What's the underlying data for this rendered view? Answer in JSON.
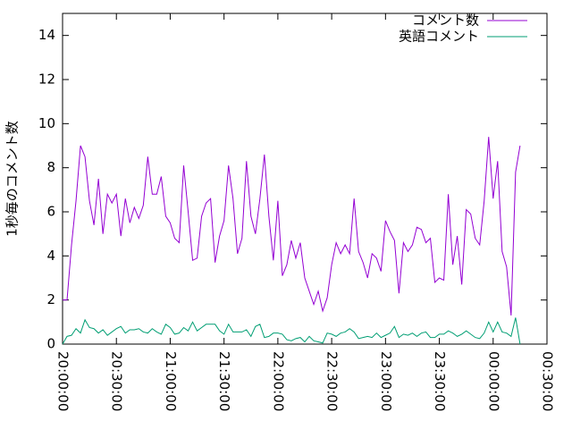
{
  "chart_data": {
    "type": "line",
    "ylabel": "1秒毎のコメント数",
    "x": [
      0,
      2.5,
      5,
      7.5,
      10,
      12.5,
      15,
      17.5,
      20,
      22.5,
      25,
      27.5,
      30,
      32.5,
      35,
      37.5,
      40,
      42.5,
      45,
      47.5,
      50,
      52.5,
      55,
      57.5,
      60,
      62.5,
      65,
      67.5,
      70,
      72.5,
      75,
      77.5,
      80,
      82.5,
      85,
      87.5,
      90,
      92.5,
      95,
      97.5,
      100,
      102.5,
      105,
      107.5,
      110,
      112.5,
      115,
      117.5,
      120,
      122.5,
      125,
      127.5,
      130,
      132.5,
      135,
      137.5,
      140,
      142.5,
      145,
      147.5,
      150,
      152.5,
      155,
      157.5,
      160,
      162.5,
      165,
      167.5,
      170,
      172.5,
      175,
      177.5,
      180,
      182.5,
      185,
      187.5,
      190,
      192.5,
      195,
      197.5,
      200,
      202.5,
      205,
      207.5,
      210,
      212.5,
      215,
      217.5,
      220,
      222.5,
      225,
      227.5,
      230,
      232.5,
      235,
      237.5,
      240,
      242.5,
      245,
      247.5,
      250,
      252.5,
      255
    ],
    "series": [
      {
        "name": "コメント数",
        "color": "#9400d3",
        "values": [
          2.0,
          2.0,
          4.5,
          6.5,
          9.0,
          8.5,
          6.5,
          5.4,
          7.5,
          5.0,
          6.8,
          6.4,
          6.8,
          4.9,
          6.6,
          5.5,
          6.2,
          5.7,
          6.3,
          8.5,
          6.8,
          6.8,
          7.6,
          5.8,
          5.5,
          4.8,
          4.6,
          8.1,
          6.0,
          3.8,
          3.9,
          5.8,
          6.4,
          6.6,
          3.7,
          4.9,
          5.6,
          8.1,
          6.6,
          4.1,
          4.8,
          8.3,
          5.8,
          5.0,
          6.6,
          8.6,
          5.8,
          3.8,
          6.5,
          3.1,
          3.6,
          4.7,
          3.9,
          4.6,
          3.0,
          2.4,
          1.8,
          2.4,
          1.5,
          2.1,
          3.6,
          4.6,
          4.1,
          4.5,
          4.1,
          6.6,
          4.2,
          3.7,
          3.0,
          4.1,
          3.9,
          3.3,
          5.6,
          5.1,
          4.7,
          2.3,
          4.6,
          4.2,
          4.5,
          5.3,
          5.2,
          4.6,
          4.8,
          2.8,
          3.0,
          2.9,
          6.8,
          3.6,
          4.9,
          2.7,
          6.1,
          5.9,
          4.8,
          4.5,
          6.5,
          9.4,
          6.6,
          8.3,
          4.2,
          3.5,
          1.3,
          7.8,
          9.0
        ]
      },
      {
        "name": "英語コメント",
        "color": "#009e73",
        "values": [
          0,
          0.35,
          0.4,
          0.7,
          0.5,
          1.1,
          0.75,
          0.7,
          0.5,
          0.65,
          0.4,
          0.55,
          0.7,
          0.8,
          0.5,
          0.65,
          0.65,
          0.7,
          0.55,
          0.5,
          0.7,
          0.55,
          0.45,
          0.9,
          0.75,
          0.45,
          0.5,
          0.75,
          0.6,
          1.0,
          0.6,
          0.75,
          0.9,
          0.9,
          0.9,
          0.6,
          0.45,
          0.9,
          0.55,
          0.55,
          0.55,
          0.65,
          0.35,
          0.8,
          0.9,
          0.3,
          0.35,
          0.5,
          0.5,
          0.45,
          0.2,
          0.15,
          0.25,
          0.3,
          0.1,
          0.35,
          0.15,
          0.1,
          0.05,
          0.5,
          0.45,
          0.35,
          0.5,
          0.55,
          0.7,
          0.55,
          0.25,
          0.3,
          0.35,
          0.3,
          0.5,
          0.3,
          0.4,
          0.5,
          0.8,
          0.3,
          0.45,
          0.4,
          0.5,
          0.35,
          0.5,
          0.55,
          0.3,
          0.3,
          0.45,
          0.45,
          0.6,
          0.5,
          0.35,
          0.45,
          0.6,
          0.45,
          0.3,
          0.25,
          0.5,
          1.0,
          0.55,
          1.0,
          0.55,
          0.5,
          0.35,
          1.2,
          0
        ]
      }
    ],
    "xlim": [
      0,
      270
    ],
    "xticks": [
      {
        "value": 0,
        "label": "20:00:00"
      },
      {
        "value": 30,
        "label": "20:30:00"
      },
      {
        "value": 60,
        "label": "21:00:00"
      },
      {
        "value": 90,
        "label": "21:30:00"
      },
      {
        "value": 120,
        "label": "22:00:00"
      },
      {
        "value": 150,
        "label": "22:30:00"
      },
      {
        "value": 180,
        "label": "23:00:00"
      },
      {
        "value": 210,
        "label": "23:30:00"
      },
      {
        "value": 240,
        "label": "00:00:00"
      },
      {
        "value": 270,
        "label": "00:30:00"
      }
    ],
    "ylim": [
      0,
      15
    ],
    "yticks": [
      0,
      2,
      4,
      6,
      8,
      10,
      12,
      14
    ],
    "legend": "top right"
  }
}
